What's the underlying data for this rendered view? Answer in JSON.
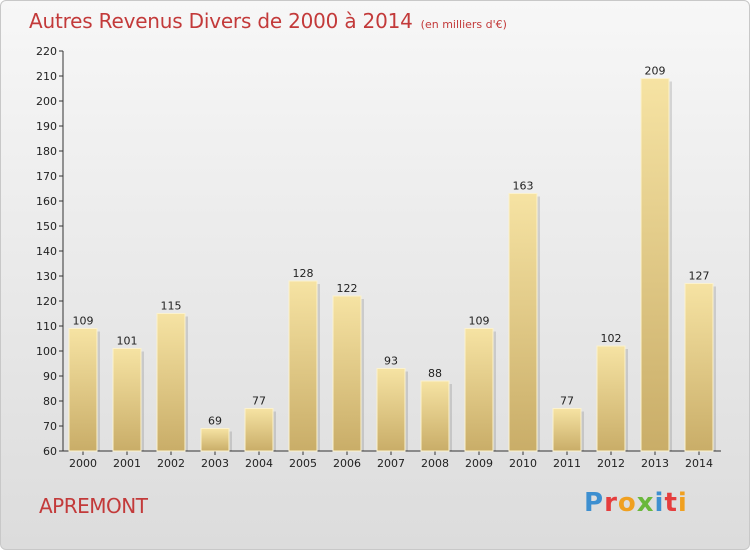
{
  "header": {
    "title": "Autres Revenus Divers de 2000 à 2014",
    "subtitle": "(en milliers d'€)"
  },
  "footer": {
    "commune": "APREMONT",
    "logo": "Proxiti"
  },
  "colors": {
    "title": "#c33a3a",
    "bar_light": "#f6e3a3",
    "bar_dark": "#c9ad68",
    "logo_letters": [
      "#3d8fd0",
      "#e53d3d",
      "#f0a020",
      "#6ab83c",
      "#3d8fd0",
      "#e53d3d",
      "#f0a020"
    ]
  },
  "chart_data": {
    "type": "bar",
    "title": "Autres Revenus Divers de 2000 à 2014",
    "subtitle": "(en milliers d'€)",
    "categories": [
      "2000",
      "2001",
      "2002",
      "2003",
      "2004",
      "2005",
      "2006",
      "2007",
      "2008",
      "2009",
      "2010",
      "2011",
      "2012",
      "2013",
      "2014"
    ],
    "values": [
      109,
      101,
      115,
      69,
      77,
      128,
      122,
      93,
      88,
      109,
      163,
      77,
      102,
      209,
      127
    ],
    "ylim": [
      60,
      220
    ],
    "yticks": [
      60,
      70,
      80,
      90,
      100,
      110,
      120,
      130,
      140,
      150,
      160,
      170,
      180,
      190,
      200,
      210,
      220
    ],
    "grid": false,
    "legend": "none",
    "data_labels": true
  }
}
